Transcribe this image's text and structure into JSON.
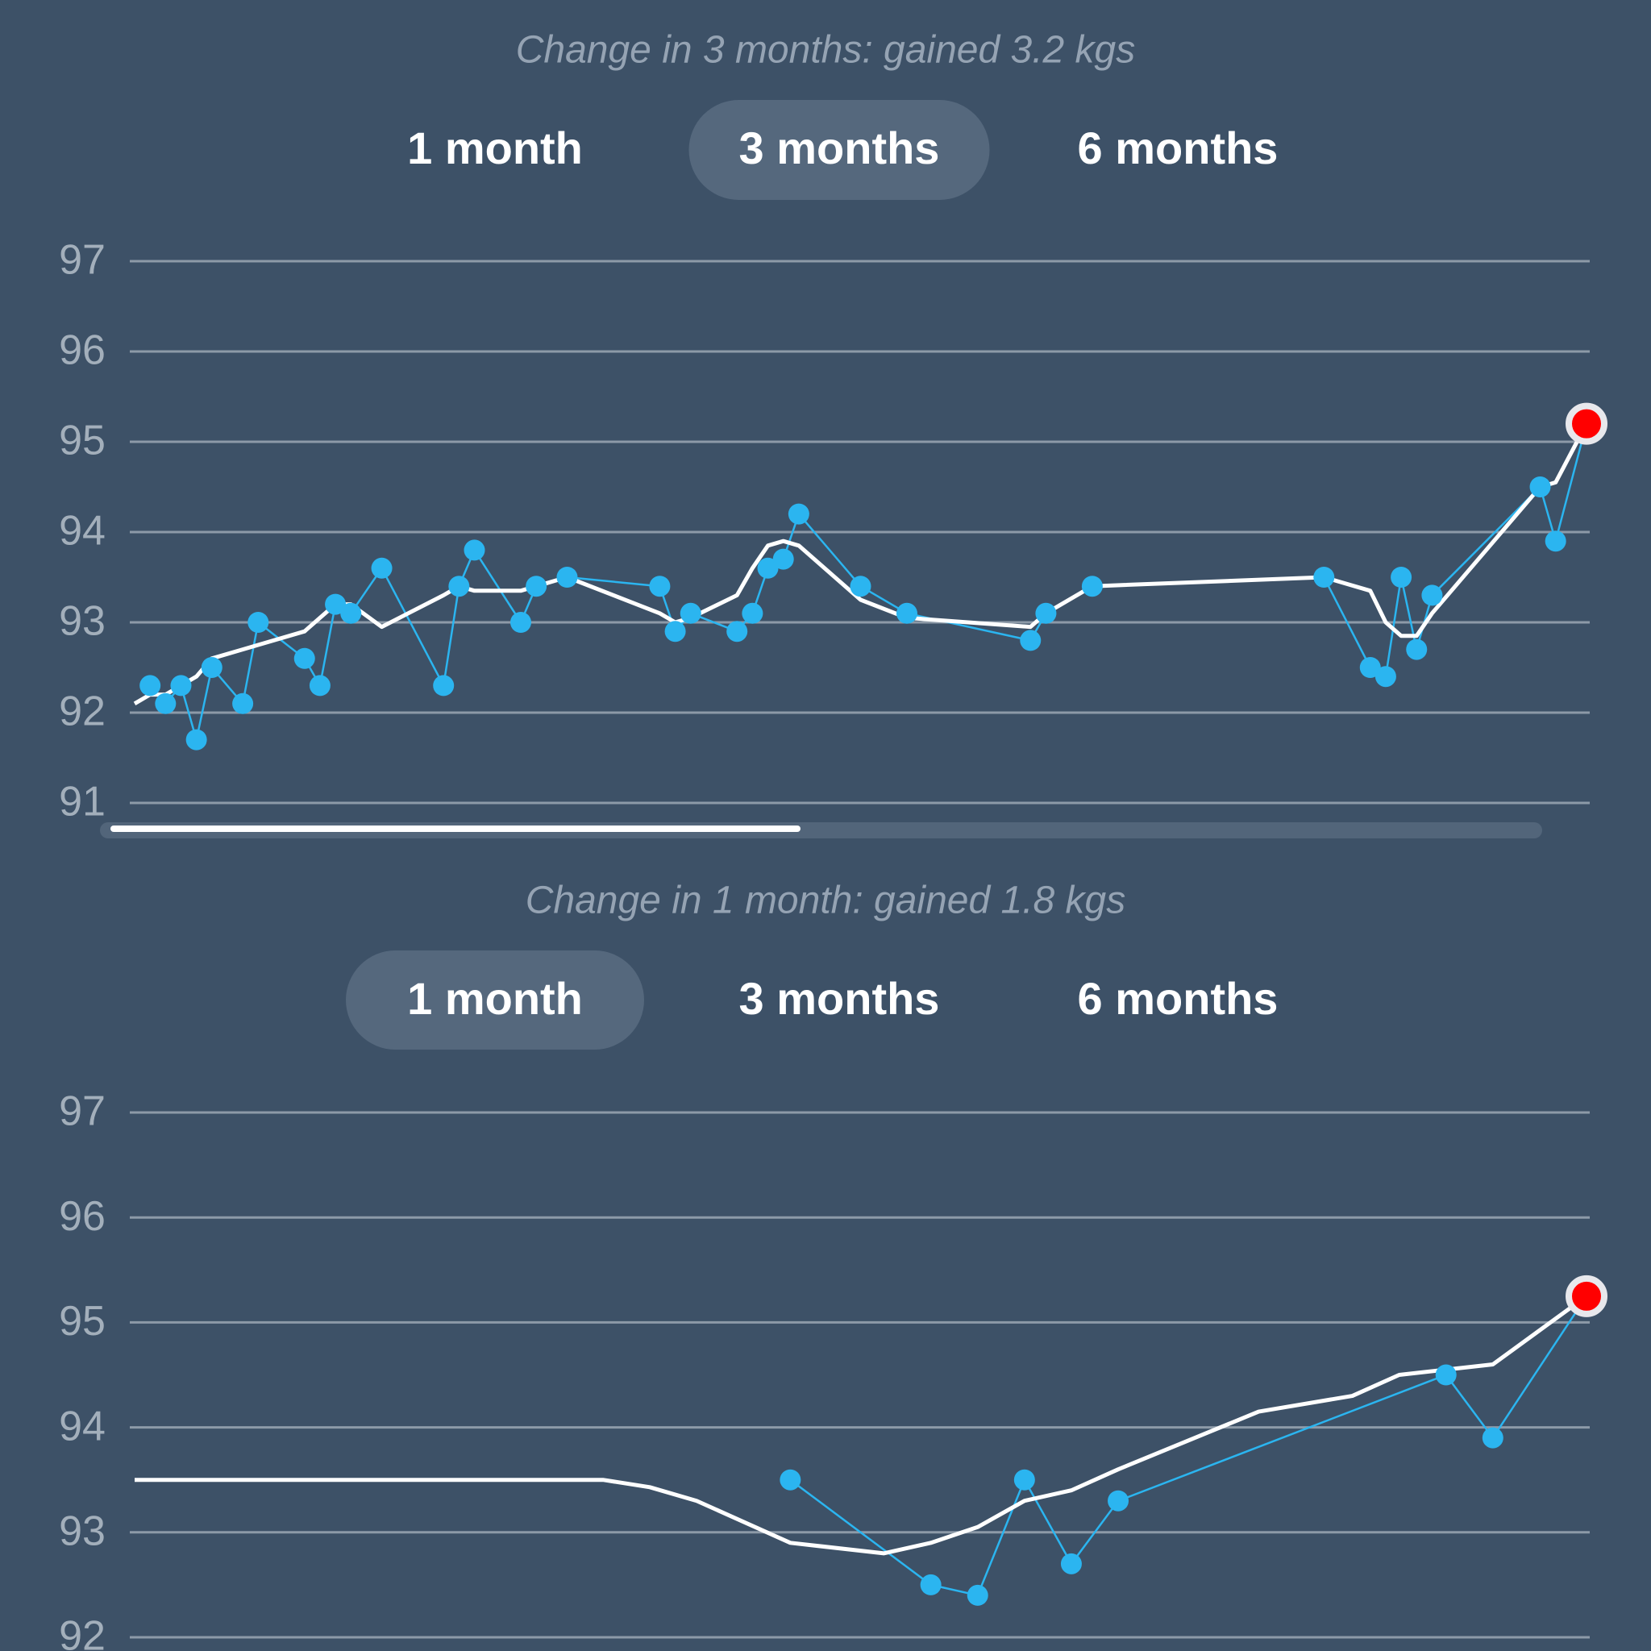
{
  "chart_data": [
    {
      "type": "line",
      "subtitle": "Change in 3 months: gained 3.2 kgs",
      "tabs": [
        "1 month",
        "3 months",
        "6 months"
      ],
      "selected_tab": 1,
      "xlim": [
        0,
        94
      ],
      "ylim": [
        91,
        97
      ],
      "yticks": [
        91,
        92,
        93,
        94,
        95,
        96,
        97
      ],
      "grid": true,
      "last_point_color": "#ff0000",
      "series": [
        {
          "color": "#2bb5f0",
          "markers": true,
          "x": [
            1,
            2,
            3,
            4,
            5,
            7,
            8,
            11,
            12,
            13,
            14,
            16,
            20,
            21,
            22,
            25,
            26,
            28,
            34,
            35,
            36,
            39,
            40,
            41,
            42,
            43,
            47,
            50,
            58,
            59,
            62,
            77,
            80,
            81,
            82,
            83,
            84,
            91,
            92,
            94
          ],
          "values": [
            92.3,
            92.1,
            92.3,
            91.7,
            92.5,
            92.1,
            93.0,
            92.6,
            92.3,
            93.2,
            93.1,
            93.6,
            92.3,
            93.4,
            93.8,
            93.0,
            93.4,
            93.5,
            93.4,
            92.9,
            93.1,
            92.9,
            93.1,
            93.6,
            93.7,
            94.2,
            93.4,
            93.1,
            92.8,
            93.1,
            93.4,
            93.5,
            92.5,
            92.4,
            93.5,
            92.7,
            93.3,
            94.5,
            93.9,
            95.2
          ]
        },
        {
          "color": "#ffffff",
          "markers": false,
          "x": [
            0,
            1,
            2,
            3,
            4,
            5,
            7,
            8,
            11,
            12,
            13,
            14,
            16,
            20,
            21,
            22,
            25,
            26,
            28,
            34,
            35,
            36,
            39,
            40,
            41,
            42,
            43,
            47,
            50,
            58,
            59,
            62,
            77,
            80,
            81,
            82,
            83,
            84,
            91,
            92,
            94
          ],
          "values": [
            92.1,
            92.2,
            92.2,
            92.3,
            92.4,
            92.6,
            92.7,
            92.75,
            92.9,
            93.05,
            93.2,
            93.2,
            92.95,
            93.3,
            93.4,
            93.35,
            93.35,
            93.4,
            93.5,
            93.1,
            93.0,
            93.05,
            93.3,
            93.6,
            93.85,
            93.9,
            93.85,
            93.25,
            93.05,
            92.95,
            93.1,
            93.4,
            93.5,
            93.35,
            93.0,
            92.85,
            92.85,
            93.1,
            94.5,
            94.55,
            95.2
          ]
        }
      ]
    },
    {
      "type": "line",
      "subtitle": "Change in 1 month: gained 1.8 kgs",
      "tabs": [
        "1 month",
        "3 months",
        "6 months"
      ],
      "selected_tab": 0,
      "xlim": [
        0,
        31
      ],
      "ylim": [
        92,
        97
      ],
      "yticks": [
        92,
        93,
        94,
        95,
        96,
        97
      ],
      "grid": true,
      "last_point_color": "#ff0000",
      "series": [
        {
          "color": "#2bb5f0",
          "markers": true,
          "x": [
            14,
            17,
            18,
            19,
            20,
            21,
            28,
            29,
            31
          ],
          "values": [
            93.5,
            92.5,
            92.4,
            93.5,
            92.7,
            93.3,
            94.5,
            93.9,
            95.25
          ]
        },
        {
          "color": "#ffffff",
          "markers": false,
          "x": [
            0,
            10,
            11,
            12,
            14,
            16,
            17,
            18,
            19,
            20,
            21,
            24,
            26,
            27,
            28,
            29,
            31
          ],
          "values": [
            93.5,
            93.5,
            93.43,
            93.3,
            92.9,
            92.8,
            92.9,
            93.05,
            93.3,
            93.4,
            93.6,
            94.15,
            94.3,
            94.5,
            94.55,
            94.6,
            95.25
          ]
        }
      ]
    }
  ]
}
